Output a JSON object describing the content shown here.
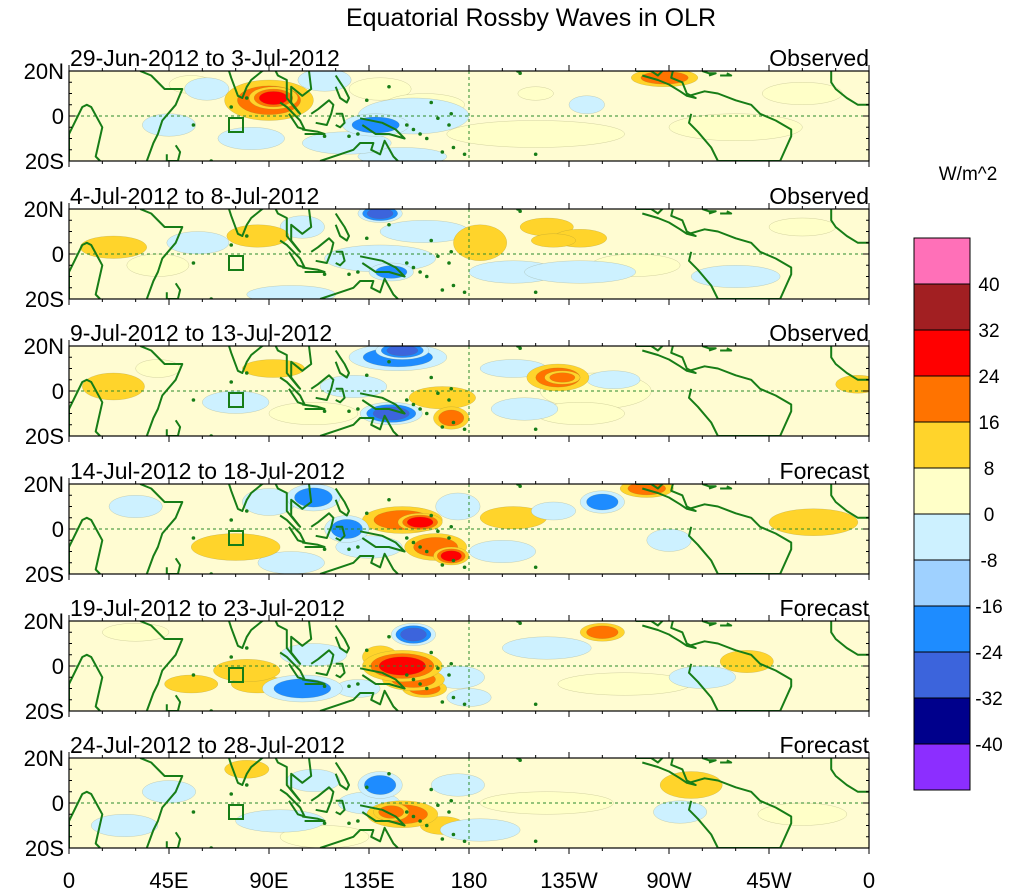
{
  "chart_data": {
    "type": "heatmap",
    "title": "Equatorial Rossby Waves in OLR",
    "units_label": "W/m^2",
    "x_ticks": [
      "0",
      "45E",
      "90E",
      "135E",
      "180",
      "135W",
      "90W",
      "45W",
      "0"
    ],
    "x_range_deg": [
      0,
      360
    ],
    "y_ticks": [
      "20N",
      "0",
      "20S"
    ],
    "y_range_deg": [
      -20,
      20
    ],
    "colorbar": {
      "levels": [
        "40",
        "32",
        "24",
        "16",
        "8",
        "0",
        "-8",
        "-16",
        "-24",
        "-32",
        "-40"
      ],
      "colors": [
        "#ff70b8",
        "#a21f22",
        "#ff0000",
        "#ff7300",
        "#ffd42b",
        "#ffffc8",
        "#cdf1ff",
        "#9fd1ff",
        "#1e8cff",
        "#3c64dc",
        "#00008c",
        "#8c2eff"
      ]
    },
    "panels": [
      {
        "period": "29-Jun-2012 to 3-Jul-2012",
        "status": "Observed",
        "blobs": [
          {
            "lon": 55,
            "lat": 14,
            "rx": 10,
            "ry": 4,
            "v": 6
          },
          {
            "lon": 90,
            "lat": 7,
            "rx": 20,
            "ry": 9,
            "v": 18
          },
          {
            "lon": 92,
            "lat": 8,
            "rx": 11,
            "ry": 5,
            "v": 30
          },
          {
            "lon": 140,
            "lat": 12,
            "rx": 14,
            "ry": 5,
            "v": 6
          },
          {
            "lon": 115,
            "lat": 16,
            "rx": 12,
            "ry": 5,
            "v": -10
          },
          {
            "lon": 62,
            "lat": 12,
            "rx": 10,
            "ry": 5,
            "v": -12
          },
          {
            "lon": 155,
            "lat": 0,
            "rx": 25,
            "ry": 8,
            "v": -12
          },
          {
            "lon": 138,
            "lat": -4,
            "rx": 15,
            "ry": 5,
            "v": -18
          },
          {
            "lon": 125,
            "lat": -12,
            "rx": 20,
            "ry": 5,
            "v": -12
          },
          {
            "lon": 150,
            "lat": -18,
            "rx": 20,
            "ry": 4,
            "v": -10
          },
          {
            "lon": 45,
            "lat": -4,
            "rx": 12,
            "ry": 5,
            "v": -10
          },
          {
            "lon": 82,
            "lat": -10,
            "rx": 15,
            "ry": 5,
            "v": -10
          },
          {
            "lon": 160,
            "lat": 5,
            "rx": 18,
            "ry": 5,
            "v": 6
          },
          {
            "lon": 210,
            "lat": -8,
            "rx": 40,
            "ry": 6,
            "v": 4
          },
          {
            "lon": 268,
            "lat": 17,
            "rx": 15,
            "ry": 4,
            "v": 16
          },
          {
            "lon": 233,
            "lat": 5,
            "rx": 8,
            "ry": 4,
            "v": -10
          },
          {
            "lon": 210,
            "lat": 10,
            "rx": 8,
            "ry": 3,
            "v": 6
          },
          {
            "lon": 300,
            "lat": -5,
            "rx": 30,
            "ry": 6,
            "v": 4
          },
          {
            "lon": 330,
            "lat": 10,
            "rx": 18,
            "ry": 5,
            "v": 4
          }
        ]
      },
      {
        "period": "4-Jul-2012 to 8-Jul-2012",
        "status": "Observed",
        "blobs": [
          {
            "lon": 20,
            "lat": 3,
            "rx": 15,
            "ry": 5,
            "v": 12
          },
          {
            "lon": 58,
            "lat": 5,
            "rx": 14,
            "ry": 5,
            "v": -10
          },
          {
            "lon": 85,
            "lat": 8,
            "rx": 14,
            "ry": 5,
            "v": 12
          },
          {
            "lon": 105,
            "lat": 12,
            "rx": 10,
            "ry": 5,
            "v": -10
          },
          {
            "lon": 140,
            "lat": 18,
            "rx": 10,
            "ry": 4,
            "v": -24
          },
          {
            "lon": 160,
            "lat": 10,
            "rx": 20,
            "ry": 5,
            "v": -10
          },
          {
            "lon": 140,
            "lat": -2,
            "rx": 25,
            "ry": 6,
            "v": -10
          },
          {
            "lon": 145,
            "lat": -8,
            "rx": 10,
            "ry": 4,
            "v": -18
          },
          {
            "lon": 185,
            "lat": 5,
            "rx": 12,
            "ry": 8,
            "v": 12
          },
          {
            "lon": 215,
            "lat": 12,
            "rx": 12,
            "ry": 4,
            "v": 10
          },
          {
            "lon": 218,
            "lat": 6,
            "rx": 10,
            "ry": 3,
            "v": 14
          },
          {
            "lon": 230,
            "lat": 7,
            "rx": 12,
            "ry": 4,
            "v": 12
          },
          {
            "lon": 200,
            "lat": -8,
            "rx": 20,
            "ry": 5,
            "v": -10
          },
          {
            "lon": 230,
            "lat": -8,
            "rx": 25,
            "ry": 5,
            "v": -10
          },
          {
            "lon": 255,
            "lat": -5,
            "rx": 20,
            "ry": 5,
            "v": 6
          },
          {
            "lon": 40,
            "lat": -5,
            "rx": 14,
            "ry": 5,
            "v": 6
          },
          {
            "lon": 100,
            "lat": -18,
            "rx": 20,
            "ry": 4,
            "v": -10
          },
          {
            "lon": 330,
            "lat": 12,
            "rx": 15,
            "ry": 4,
            "v": 4
          },
          {
            "lon": 300,
            "lat": -10,
            "rx": 20,
            "ry": 5,
            "v": -10
          }
        ]
      },
      {
        "period": "9-Jul-2012 to 13-Jul-2012",
        "status": "Observed",
        "blobs": [
          {
            "lon": 20,
            "lat": 2,
            "rx": 14,
            "ry": 6,
            "v": 14
          },
          {
            "lon": 40,
            "lat": 10,
            "rx": 10,
            "ry": 4,
            "v": 6
          },
          {
            "lon": 92,
            "lat": 10,
            "rx": 14,
            "ry": 4,
            "v": 10
          },
          {
            "lon": 150,
            "lat": 18,
            "rx": 12,
            "ry": 4,
            "v": -30
          },
          {
            "lon": 148,
            "lat": 15,
            "rx": 22,
            "ry": 6,
            "v": -18
          },
          {
            "lon": 128,
            "lat": 2,
            "rx": 15,
            "ry": 5,
            "v": -10
          },
          {
            "lon": 145,
            "lat": -10,
            "rx": 14,
            "ry": 5,
            "v": -24
          },
          {
            "lon": 168,
            "lat": -3,
            "rx": 15,
            "ry": 5,
            "v": 8
          },
          {
            "lon": 172,
            "lat": -12,
            "rx": 8,
            "ry": 5,
            "v": 20
          },
          {
            "lon": 220,
            "lat": 6,
            "rx": 14,
            "ry": 6,
            "v": 18
          },
          {
            "lon": 222,
            "lat": 6,
            "rx": 8,
            "ry": 3,
            "v": 22
          },
          {
            "lon": 245,
            "lat": 5,
            "rx": 12,
            "ry": 4,
            "v": -14
          },
          {
            "lon": 237,
            "lat": 0,
            "rx": 25,
            "ry": 8,
            "v": 4
          },
          {
            "lon": 200,
            "lat": 10,
            "rx": 15,
            "ry": 4,
            "v": -10
          },
          {
            "lon": 205,
            "lat": -8,
            "rx": 15,
            "ry": 5,
            "v": -8
          },
          {
            "lon": 230,
            "lat": -10,
            "rx": 20,
            "ry": 5,
            "v": 6
          },
          {
            "lon": 355,
            "lat": 3,
            "rx": 10,
            "ry": 4,
            "v": 14
          },
          {
            "lon": 110,
            "lat": -10,
            "rx": 20,
            "ry": 5,
            "v": 6
          },
          {
            "lon": 75,
            "lat": -5,
            "rx": 15,
            "ry": 5,
            "v": -10
          }
        ]
      },
      {
        "period": "14-Jul-2012 to 18-Jul-2012",
        "status": "Forecast",
        "blobs": [
          {
            "lon": 30,
            "lat": 10,
            "rx": 12,
            "ry": 5,
            "v": -10
          },
          {
            "lon": 75,
            "lat": -8,
            "rx": 20,
            "ry": 6,
            "v": 12
          },
          {
            "lon": 90,
            "lat": 12,
            "rx": 12,
            "ry": 6,
            "v": -14
          },
          {
            "lon": 110,
            "lat": 14,
            "rx": 12,
            "ry": 6,
            "v": -20
          },
          {
            "lon": 125,
            "lat": 0,
            "rx": 10,
            "ry": 6,
            "v": -18
          },
          {
            "lon": 100,
            "lat": -15,
            "rx": 15,
            "ry": 5,
            "v": -10
          },
          {
            "lon": 150,
            "lat": 4,
            "rx": 18,
            "ry": 6,
            "v": 16
          },
          {
            "lon": 158,
            "lat": 3,
            "rx": 10,
            "ry": 4,
            "v": 24
          },
          {
            "lon": 165,
            "lat": -8,
            "rx": 14,
            "ry": 6,
            "v": 18
          },
          {
            "lon": 172,
            "lat": -12,
            "rx": 8,
            "ry": 4,
            "v": 26
          },
          {
            "lon": 135,
            "lat": -8,
            "rx": 15,
            "ry": 5,
            "v": -10
          },
          {
            "lon": 175,
            "lat": 10,
            "rx": 10,
            "ry": 6,
            "v": -14
          },
          {
            "lon": 200,
            "lat": 5,
            "rx": 15,
            "ry": 5,
            "v": 10
          },
          {
            "lon": 240,
            "lat": 12,
            "rx": 10,
            "ry": 5,
            "v": -22
          },
          {
            "lon": 218,
            "lat": 8,
            "rx": 10,
            "ry": 4,
            "v": -10
          },
          {
            "lon": 260,
            "lat": 18,
            "rx": 12,
            "ry": 4,
            "v": 16
          },
          {
            "lon": 270,
            "lat": -5,
            "rx": 10,
            "ry": 5,
            "v": -10
          },
          {
            "lon": 335,
            "lat": 3,
            "rx": 20,
            "ry": 6,
            "v": 10
          },
          {
            "lon": 195,
            "lat": -10,
            "rx": 15,
            "ry": 5,
            "v": -10
          }
        ]
      },
      {
        "period": "19-Jul-2012 to 23-Jul-2012",
        "status": "Forecast",
        "blobs": [
          {
            "lon": 55,
            "lat": -8,
            "rx": 12,
            "ry": 4,
            "v": 10
          },
          {
            "lon": 80,
            "lat": -2,
            "rx": 15,
            "ry": 5,
            "v": 14
          },
          {
            "lon": 85,
            "lat": -8,
            "rx": 12,
            "ry": 4,
            "v": 10
          },
          {
            "lon": 105,
            "lat": -10,
            "rx": 18,
            "ry": 6,
            "v": -18
          },
          {
            "lon": 110,
            "lat": 5,
            "rx": 15,
            "ry": 5,
            "v": -10
          },
          {
            "lon": 155,
            "lat": 14,
            "rx": 10,
            "ry": 5,
            "v": -24
          },
          {
            "lon": 140,
            "lat": 4,
            "rx": 8,
            "ry": 5,
            "v": 14
          },
          {
            "lon": 150,
            "lat": 0,
            "rx": 18,
            "ry": 7,
            "v": 26
          },
          {
            "lon": 155,
            "lat": -6,
            "rx": 14,
            "ry": 5,
            "v": 22
          },
          {
            "lon": 160,
            "lat": -10,
            "rx": 10,
            "ry": 4,
            "v": 18
          },
          {
            "lon": 130,
            "lat": -10,
            "rx": 10,
            "ry": 4,
            "v": -14
          },
          {
            "lon": 175,
            "lat": -5,
            "rx": 12,
            "ry": 5,
            "v": -10
          },
          {
            "lon": 180,
            "lat": -14,
            "rx": 10,
            "ry": 4,
            "v": -8
          },
          {
            "lon": 240,
            "lat": 15,
            "rx": 10,
            "ry": 4,
            "v": 16
          },
          {
            "lon": 215,
            "lat": 8,
            "rx": 20,
            "ry": 5,
            "v": -8
          },
          {
            "lon": 305,
            "lat": 2,
            "rx": 12,
            "ry": 5,
            "v": 14
          },
          {
            "lon": 285,
            "lat": -5,
            "rx": 15,
            "ry": 5,
            "v": -10
          },
          {
            "lon": 30,
            "lat": 15,
            "rx": 15,
            "ry": 4,
            "v": 6
          },
          {
            "lon": 250,
            "lat": -8,
            "rx": 30,
            "ry": 5,
            "v": 4
          }
        ]
      },
      {
        "period": "24-Jul-2012 to 28-Jul-2012",
        "status": "Forecast",
        "blobs": [
          {
            "lon": 80,
            "lat": 15,
            "rx": 10,
            "ry": 4,
            "v": 10
          },
          {
            "lon": 95,
            "lat": -8,
            "rx": 20,
            "ry": 5,
            "v": -12
          },
          {
            "lon": 110,
            "lat": 10,
            "rx": 12,
            "ry": 5,
            "v": -10
          },
          {
            "lon": 140,
            "lat": 8,
            "rx": 10,
            "ry": 6,
            "v": -22
          },
          {
            "lon": 135,
            "lat": 0,
            "rx": 14,
            "ry": 5,
            "v": -10
          },
          {
            "lon": 150,
            "lat": -5,
            "rx": 16,
            "ry": 6,
            "v": 16
          },
          {
            "lon": 145,
            "lat": -4,
            "rx": 8,
            "ry": 4,
            "v": 22
          },
          {
            "lon": 168,
            "lat": -10,
            "rx": 10,
            "ry": 4,
            "v": 8
          },
          {
            "lon": 115,
            "lat": -15,
            "rx": 20,
            "ry": 5,
            "v": 6
          },
          {
            "lon": 175,
            "lat": 8,
            "rx": 12,
            "ry": 5,
            "v": -10
          },
          {
            "lon": 185,
            "lat": -12,
            "rx": 18,
            "ry": 5,
            "v": -10
          },
          {
            "lon": 280,
            "lat": 8,
            "rx": 14,
            "ry": 6,
            "v": 12
          },
          {
            "lon": 275,
            "lat": -4,
            "rx": 12,
            "ry": 5,
            "v": -10
          },
          {
            "lon": 45,
            "lat": 5,
            "rx": 12,
            "ry": 5,
            "v": -8
          },
          {
            "lon": 25,
            "lat": -10,
            "rx": 15,
            "ry": 5,
            "v": -8
          },
          {
            "lon": 215,
            "lat": 0,
            "rx": 30,
            "ry": 5,
            "v": 4
          },
          {
            "lon": 330,
            "lat": -5,
            "rx": 20,
            "ry": 5,
            "v": 4
          }
        ]
      }
    ]
  }
}
